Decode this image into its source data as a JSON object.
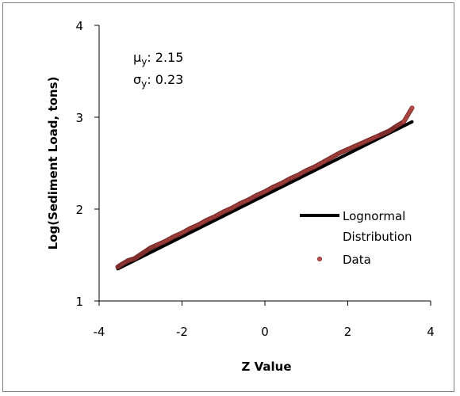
{
  "chart_data": {
    "type": "scatter",
    "xlabel": "Z Value",
    "ylabel": "Log(Sediment Load, tons)",
    "xlim": [
      -4,
      4
    ],
    "ylim": [
      1,
      4
    ],
    "x_ticks": [
      "-4",
      "-2",
      "0",
      "2",
      "4"
    ],
    "y_ticks": [
      "1",
      "2",
      "3",
      "4"
    ],
    "grid": false,
    "legend_position": "right",
    "annotations": {
      "mu_symbol": "μ",
      "mu_sub": "y",
      "mu_value": ": 2.15",
      "sigma_symbol": "σ",
      "sigma_sub": "y",
      "sigma_value": ": 0.23"
    },
    "series": [
      {
        "name": "Lognormal Distribution",
        "legend_lines": [
          "Lognormal",
          "Distribution"
        ],
        "kind": "line",
        "color": "#000000",
        "x": [
          -3.55,
          3.55
        ],
        "y": [
          1.35,
          2.95
        ]
      },
      {
        "name": "Data",
        "kind": "points",
        "color": "#c0504d",
        "x": [
          -3.55,
          -3.45,
          -3.3,
          -3.15,
          -3.05,
          -2.95,
          -2.85,
          -2.75,
          -2.6,
          -2.4,
          -2.2,
          -2.0,
          -1.8,
          -1.6,
          -1.4,
          -1.2,
          -1.0,
          -0.8,
          -0.6,
          -0.4,
          -0.2,
          0.0,
          0.2,
          0.4,
          0.6,
          0.8,
          1.0,
          1.2,
          1.4,
          1.6,
          1.8,
          2.0,
          2.2,
          2.4,
          2.6,
          2.8,
          2.9,
          3.0,
          3.1,
          3.2,
          3.35,
          3.55
        ],
        "y": [
          1.37,
          1.4,
          1.44,
          1.46,
          1.49,
          1.52,
          1.55,
          1.58,
          1.61,
          1.65,
          1.7,
          1.74,
          1.79,
          1.83,
          1.88,
          1.92,
          1.97,
          2.01,
          2.06,
          2.1,
          2.15,
          2.19,
          2.24,
          2.28,
          2.33,
          2.37,
          2.42,
          2.46,
          2.51,
          2.56,
          2.61,
          2.65,
          2.69,
          2.73,
          2.77,
          2.81,
          2.83,
          2.85,
          2.88,
          2.91,
          2.95,
          3.1
        ]
      }
    ]
  }
}
